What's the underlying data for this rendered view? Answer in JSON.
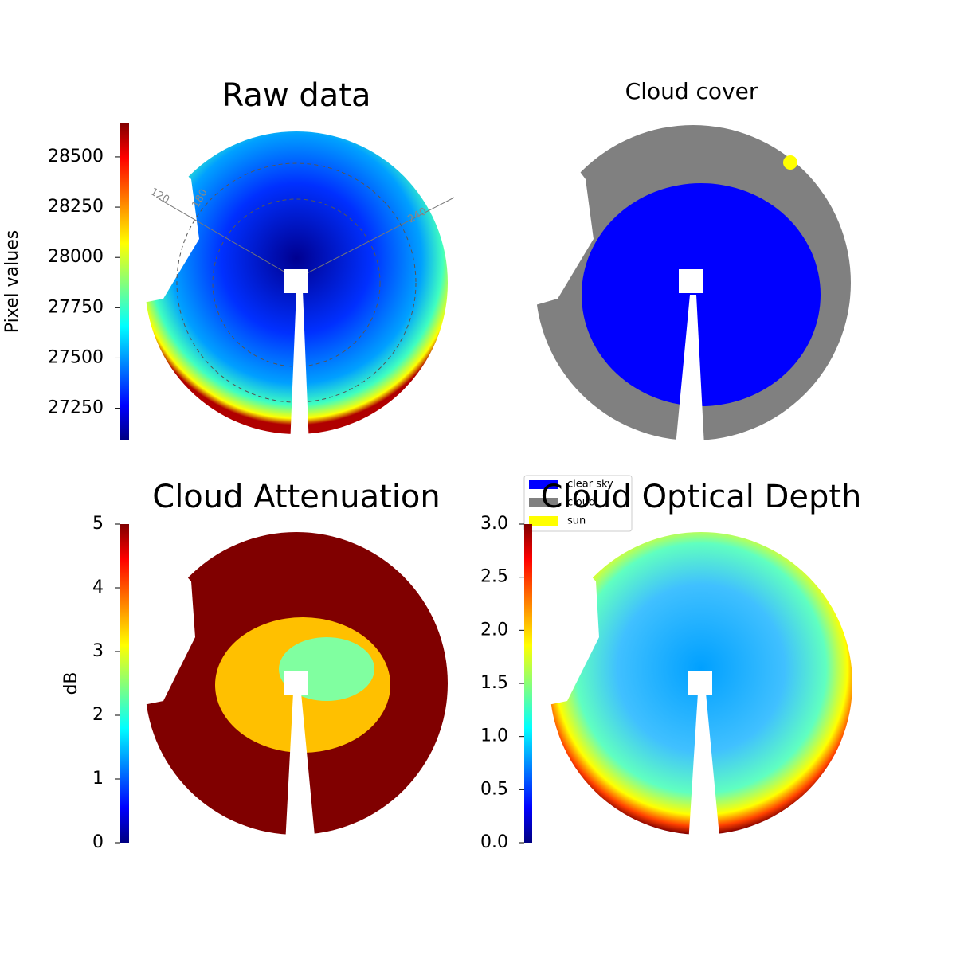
{
  "chart_data": [
    {
      "type": "heatmap",
      "title": "Raw data",
      "colorbar_label": "Pixel values",
      "colormap": "jet",
      "clim": [
        27090,
        28670
      ],
      "cticks": [
        27250,
        27500,
        27750,
        28000,
        28250,
        28500
      ],
      "polar_labels": [
        "120",
        "180",
        "240"
      ]
    },
    {
      "type": "categorical",
      "title": "Cloud cover",
      "series": [
        {
          "name": "clear sky",
          "color": "#0000ff"
        },
        {
          "name": "cloud",
          "color": "#808080"
        },
        {
          "name": "sun",
          "color": "#ffff00"
        }
      ],
      "legend": "lower left"
    },
    {
      "type": "heatmap",
      "title": "Cloud Attenuation",
      "colorbar_label": "dB",
      "colormap": "jet",
      "clim": [
        0,
        5
      ],
      "cticks": [
        0,
        1,
        2,
        3,
        4,
        5
      ]
    },
    {
      "type": "heatmap",
      "title": "Cloud Optical Depth",
      "colormap": "jet",
      "clim": [
        0,
        3
      ],
      "cticks": [
        {
          "value": 0,
          "label": "0.0"
        },
        {
          "value": 0.5,
          "label": "0.5"
        },
        {
          "value": 1,
          "label": "1.0"
        },
        {
          "value": 1.5,
          "label": "1.5"
        },
        {
          "value": 2,
          "label": "2.0"
        },
        {
          "value": 2.5,
          "label": "2.5"
        },
        {
          "value": 3,
          "label": "3.0"
        }
      ]
    }
  ]
}
